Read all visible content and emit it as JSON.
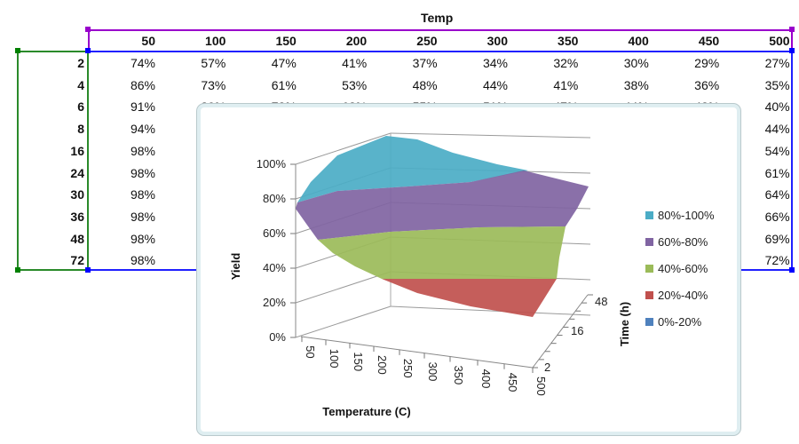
{
  "sheet": {
    "column_group_title": "Temp",
    "column_headers": [
      "50",
      "100",
      "150",
      "200",
      "250",
      "300",
      "350",
      "400",
      "450",
      "500"
    ],
    "rows": [
      {
        "label": "2",
        "values": [
          "74%",
          "57%",
          "47%",
          "41%",
          "37%",
          "34%",
          "32%",
          "30%",
          "29%",
          "27%"
        ]
      },
      {
        "label": "4",
        "values": [
          "86%",
          "73%",
          "61%",
          "53%",
          "48%",
          "44%",
          "41%",
          "38%",
          "36%",
          "35%"
        ]
      },
      {
        "label": "6",
        "values": [
          "91%",
          "80%",
          "72%",
          "62%",
          "55%",
          "51%",
          "47%",
          "44%",
          "42%",
          "40%"
        ]
      },
      {
        "label": "8",
        "values": [
          "94%",
          null,
          null,
          null,
          null,
          null,
          null,
          null,
          null,
          "44%"
        ]
      },
      {
        "label": "16",
        "values": [
          "98%",
          null,
          null,
          null,
          null,
          null,
          null,
          null,
          null,
          "54%"
        ]
      },
      {
        "label": "24",
        "values": [
          "98%",
          null,
          null,
          null,
          null,
          null,
          null,
          null,
          null,
          "61%"
        ]
      },
      {
        "label": "30",
        "values": [
          "98%",
          null,
          null,
          null,
          null,
          null,
          null,
          null,
          null,
          "64%"
        ]
      },
      {
        "label": "36",
        "values": [
          "98%",
          null,
          null,
          null,
          null,
          null,
          null,
          null,
          null,
          "66%"
        ]
      },
      {
        "label": "48",
        "values": [
          "98%",
          null,
          null,
          null,
          null,
          null,
          null,
          null,
          null,
          "69%"
        ]
      },
      {
        "label": "72",
        "values": [
          "98%",
          null,
          null,
          null,
          null,
          null,
          null,
          null,
          null,
          "72%"
        ]
      }
    ],
    "selection_colors": {
      "header_range": "#9900cc",
      "data_range": "#0000ff",
      "label_range": "#008000"
    }
  },
  "chart_data": {
    "type": "surface",
    "x_label": "Temperature (C)",
    "y_label": "Time (h)",
    "z_label": "Yield",
    "x_ticks": [
      "50",
      "100",
      "150",
      "200",
      "250",
      "300",
      "350",
      "400",
      "450",
      "500"
    ],
    "y_ticks": [
      "2",
      "16",
      "48"
    ],
    "z_ticks": [
      "0%",
      "20%",
      "40%",
      "60%",
      "80%",
      "100%"
    ],
    "z_range": [
      0,
      1
    ],
    "grid": true,
    "legend_position": "right",
    "legend": [
      {
        "label": "80%-100%",
        "color": "#4bacc6"
      },
      {
        "label": "60%-80%",
        "color": "#8064a2"
      },
      {
        "label": "40%-60%",
        "color": "#9bbb59"
      },
      {
        "label": "20%-40%",
        "color": "#c0504d"
      },
      {
        "label": "0%-20%",
        "color": "#4f81bd"
      }
    ]
  }
}
